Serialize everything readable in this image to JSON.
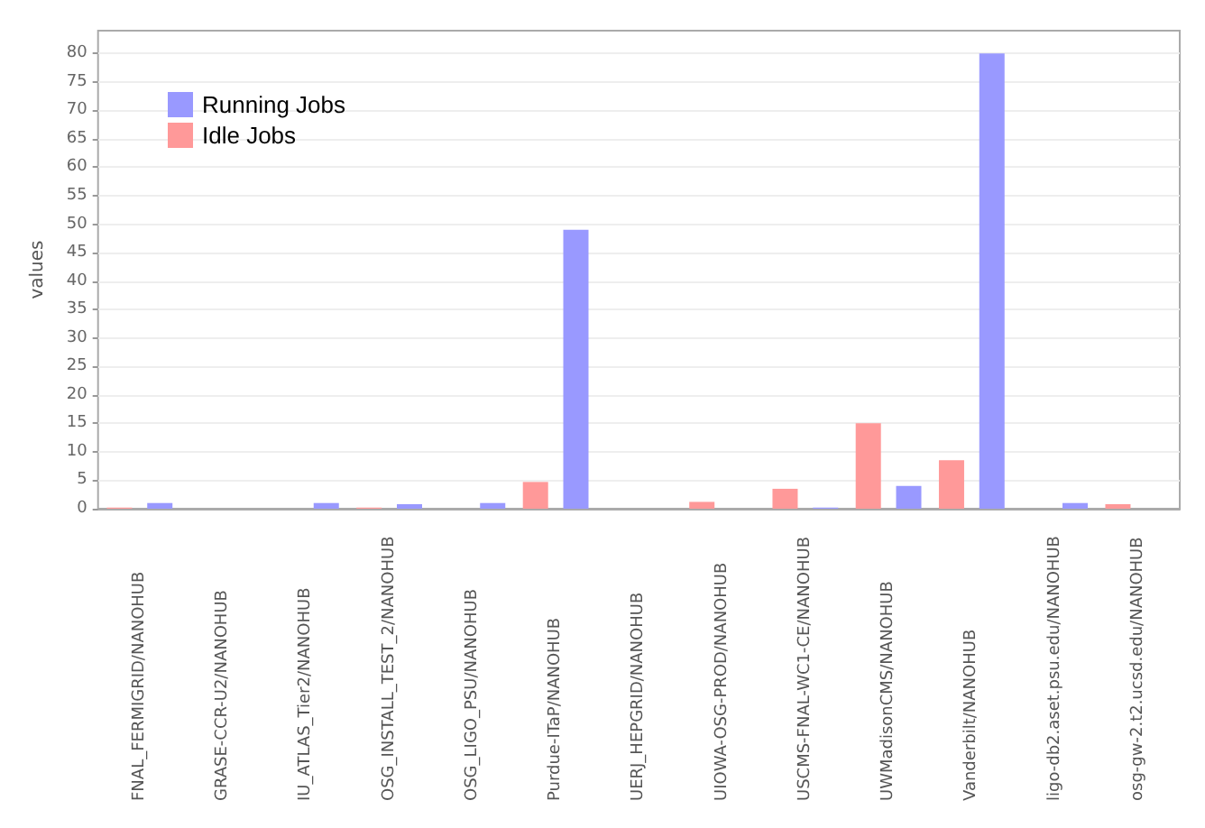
{
  "chart_data": {
    "type": "bar",
    "ylabel": "values",
    "categories": [
      "FNAL_FERMIGRID/NANOHUB",
      "GRASE-CCR-U2/NANOHUB",
      "IU_ATLAS_Tier2/NANOHUB",
      "OSG_INSTALL_TEST_2/NANOHUB",
      "OSG_LIGO_PSU/NANOHUB",
      "Purdue-ITaP/NANOHUB",
      "UERJ_HEPGRID/NANOHUB",
      "UIOWA-OSG-PROD/NANOHUB",
      "USCMS-FNAL-WC1-CE/NANOHUB",
      "UWMadisonCMS/NANOHUB",
      "Vanderbilt/NANOHUB",
      "ligo-db2.aset.psu.edu/NANOHUB",
      "osg-gw-2.t2.ucsd.edu/NANOHUB"
    ],
    "series": [
      {
        "name": "Running Jobs",
        "color": "#9999ff",
        "values": [
          1,
          0,
          1,
          0.8,
          1,
          49,
          0,
          0,
          0.2,
          4,
          80,
          1,
          0
        ]
      },
      {
        "name": "Idle Jobs",
        "color": "#ff9999",
        "values": [
          0.2,
          0,
          0,
          0.2,
          0,
          4.7,
          0,
          1.2,
          3.5,
          15,
          8.5,
          0,
          0.8
        ]
      }
    ],
    "ylim": [
      0,
      84
    ],
    "yticks": [
      0,
      5,
      10,
      15,
      20,
      25,
      30,
      35,
      40,
      45,
      50,
      55,
      60,
      65,
      70,
      75,
      80
    ],
    "grid": "y",
    "legend": "top left"
  }
}
